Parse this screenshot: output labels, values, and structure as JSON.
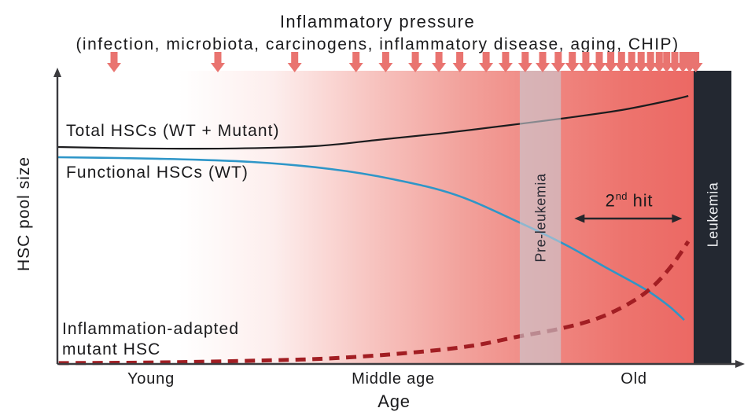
{
  "header": {
    "title": "Inflammatory pressure",
    "subtitle": "(infection, microbiota, carcinogens, inflammatory disease, aging, CHIP)"
  },
  "axes": {
    "y_label": "HSC pool size",
    "x_label": "Age",
    "x_ticks": [
      "Young",
      "Middle age",
      "Old"
    ]
  },
  "curve_labels": {
    "total": "Total HSCs (WT + Mutant)",
    "functional": "Functional HSCs (WT)",
    "mutant_line1": "Inflammation-adapted",
    "mutant_line2": "mutant HSC"
  },
  "annotations": {
    "second_hit": {
      "base": "2",
      "sup": "nd",
      "rest": " hit"
    },
    "pre_leukemia": "Pre-leukemia",
    "leukemia": "Leukemia"
  },
  "colors": {
    "pressure_arrow": "#e97470",
    "total_curve": "#1c1c1e",
    "functional_curve": "#2e96c8",
    "mutant_curve": "#a21e23",
    "axis": "#3b3b3f",
    "annotation_arrow": "#26262b",
    "pre_leukemia_band": "rgba(202,204,212,0.62)",
    "leukemia_band": "#232831",
    "gradient_start": "#ffffff",
    "gradient_end": "#eb625e"
  },
  "chart_data": {
    "type": "line",
    "title": "Inflammatory pressure",
    "subtitle": "(infection, microbiota, carcinogens, inflammatory disease, aging, CHIP)",
    "xlabel": "Age",
    "ylabel": "HSC pool size",
    "x_ticks": [
      "Young",
      "Middle age",
      "Old"
    ],
    "x_tick_positions": [
      0.139,
      0.498,
      0.854
    ],
    "axes_note": "qualitative axes; x = age 0-1 across plot, y = relative pool size 0-1",
    "grid": false,
    "legend": "labels drawn beside curves",
    "series": [
      {
        "name": "Total HSCs (WT + Mutant)",
        "style": "solid",
        "color_key": "total_curve",
        "x": [
          0.0,
          0.125,
          0.265,
          0.382,
          0.475,
          0.568,
          0.662,
          0.755,
          0.837,
          0.907,
          0.936
        ],
        "y": [
          0.74,
          0.735,
          0.735,
          0.743,
          0.764,
          0.786,
          0.812,
          0.839,
          0.866,
          0.898,
          0.914
        ]
      },
      {
        "name": "Functional HSCs (WT)",
        "style": "solid",
        "color_key": "functional_curve",
        "x": [
          0.0,
          0.148,
          0.288,
          0.405,
          0.498,
          0.592,
          0.685,
          0.755,
          0.813,
          0.872,
          0.907,
          0.93
        ],
        "y": [
          0.705,
          0.7,
          0.689,
          0.665,
          0.63,
          0.576,
          0.483,
          0.405,
          0.33,
          0.255,
          0.198,
          0.15
        ]
      },
      {
        "name": "Inflammation-adapted mutant HSC",
        "style": "dashed",
        "color_key": "mutant_curve",
        "x": [
          0.002,
          0.148,
          0.288,
          0.405,
          0.522,
          0.615,
          0.685,
          0.747,
          0.802,
          0.848,
          0.883,
          0.913,
          0.936
        ],
        "y": [
          0.003,
          0.005,
          0.011,
          0.019,
          0.038,
          0.062,
          0.094,
          0.121,
          0.156,
          0.206,
          0.263,
          0.34,
          0.418
        ]
      }
    ],
    "regions": [
      {
        "name": "Pre-leukemia",
        "x_start": 0.686,
        "x_end": 0.747,
        "fill_key": "pre_leukemia_band"
      },
      {
        "name": "Leukemia",
        "x_start": 0.944,
        "x_end": 1.0,
        "fill_key": "leukemia_band"
      }
    ],
    "second_hit_arrow_span": [
      0.767,
      0.927
    ],
    "second_hit_arrow_y": 0.496,
    "pressure_arrows_x": [
      0.084,
      0.238,
      0.352,
      0.443,
      0.487,
      0.531,
      0.566,
      0.597,
      0.636,
      0.665,
      0.694,
      0.72,
      0.743,
      0.764,
      0.784,
      0.804,
      0.821,
      0.837,
      0.852,
      0.866,
      0.88,
      0.893,
      0.904,
      0.916,
      0.928,
      0.938,
      0.947
    ]
  }
}
